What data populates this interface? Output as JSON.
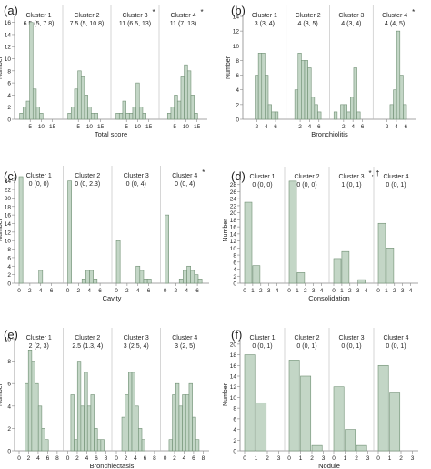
{
  "colors": {
    "bar_fill": "#c3d6c6",
    "bar_stroke": "#6f8f73",
    "axis": "#888888",
    "divider": "#bbbbbb",
    "text": "#222222"
  },
  "chart_data": [
    {
      "panel": "(a)",
      "type": "bar",
      "xlabel": "Total score",
      "ylabel": "Number",
      "ylim": [
        0,
        17
      ],
      "yticks": [
        0,
        2,
        4,
        6,
        8,
        10,
        12,
        14,
        16
      ],
      "xlim": [
        0,
        18
      ],
      "xticks": [
        5,
        10,
        15
      ],
      "bin_width": 1.5,
      "grid": false,
      "clusters": [
        {
          "name": "Cluster 1",
          "stat": "6.5 (5, 7.8)",
          "marker": "",
          "x": [
            1,
            2.5,
            4,
            5.5,
            7,
            8.5,
            10
          ],
          "values": [
            1,
            2,
            3,
            16,
            5,
            2,
            1
          ]
        },
        {
          "name": "Cluster 2",
          "stat": "7.5 (5, 10.8)",
          "marker": "",
          "x": [
            1,
            2.5,
            4,
            5.5,
            7,
            8.5,
            10,
            11.5,
            13
          ],
          "values": [
            1,
            2,
            5,
            8,
            7,
            4,
            2,
            1,
            1
          ]
        },
        {
          "name": "Cluster 3",
          "stat": "11 (6.5, 13)",
          "marker": "*",
          "x": [
            1,
            2.5,
            4,
            5.5,
            7,
            8.5,
            10,
            11.5,
            13
          ],
          "values": [
            1,
            1,
            3,
            1,
            1,
            2,
            6,
            2,
            1
          ]
        },
        {
          "name": "Cluster 4",
          "stat": "11 (7, 13)",
          "marker": "*",
          "x": [
            2.5,
            4,
            5.5,
            7,
            8.5,
            10,
            11.5,
            13,
            14.5
          ],
          "values": [
            1,
            2,
            4,
            3,
            7,
            9,
            8,
            4,
            1
          ]
        }
      ]
    },
    {
      "panel": "(b)",
      "type": "bar",
      "xlabel": "Bronchiolitis",
      "ylabel": "Number",
      "ylim": [
        0,
        14
      ],
      "yticks": [
        0,
        2,
        4,
        6,
        8,
        10,
        12,
        14
      ],
      "xlim": [
        0,
        7.5
      ],
      "xticks": [
        2,
        4,
        6
      ],
      "bin_width": 0.7,
      "grid": false,
      "clusters": [
        {
          "name": "Cluster 1",
          "stat": "3 (3, 4)",
          "marker": "",
          "x": [
            2,
            2.7,
            3.4,
            4.1,
            4.8,
            5.5,
            6.2
          ],
          "values": [
            6,
            9,
            9,
            6,
            2,
            1,
            1
          ]
        },
        {
          "name": "Cluster 2",
          "stat": "4 (3, 5)",
          "marker": "",
          "x": [
            1.2,
            1.9,
            2.6,
            3.3,
            4,
            4.7,
            5.4,
            6.1
          ],
          "values": [
            4,
            9,
            8,
            8,
            7,
            3,
            2,
            1
          ]
        },
        {
          "name": "Cluster 3",
          "stat": "4 (3, 4)",
          "marker": "",
          "x": [
            0.3,
            1.7,
            2.4,
            3.1,
            3.8,
            4.5,
            5.2
          ],
          "values": [
            1,
            2,
            2,
            1,
            3,
            7,
            1
          ]
        },
        {
          "name": "Cluster 4",
          "stat": "4 (4, 5)",
          "marker": "*",
          "x": [
            3,
            3.7,
            4.4,
            5.1,
            5.8
          ],
          "values": [
            2,
            4,
            12,
            6,
            2
          ]
        }
      ]
    },
    {
      "panel": "(c)",
      "type": "bar",
      "xlabel": "Cavity",
      "ylabel": "Number",
      "ylim": [
        0,
        25
      ],
      "yticks": [
        0,
        2,
        4,
        6,
        8,
        10,
        12,
        14,
        16,
        18,
        20,
        22,
        24
      ],
      "xlim": [
        0,
        7.5
      ],
      "xticks": [
        0,
        2,
        4,
        6
      ],
      "bin_width": 0.7,
      "grid": false,
      "clusters": [
        {
          "name": "Cluster 1",
          "stat": "0 (0, 0)",
          "marker": "",
          "x": [
            0.35,
            4.0
          ],
          "values": [
            25,
            3
          ]
        },
        {
          "name": "Cluster 2",
          "stat": "0 (0, 2.3)",
          "marker": "",
          "x": [
            0.35,
            3.0,
            3.7,
            4.4,
            5.1
          ],
          "values": [
            24,
            1,
            3,
            3,
            1
          ]
        },
        {
          "name": "Cluster 3",
          "stat": "0 (0, 4)",
          "marker": "",
          "x": [
            0.35,
            4.0,
            4.7,
            5.4,
            6.1
          ],
          "values": [
            10,
            4,
            3,
            1,
            1
          ]
        },
        {
          "name": "Cluster 4",
          "stat": "0 (0, 4)",
          "marker": "*",
          "x": [
            0.35,
            3.0,
            3.7,
            4.4,
            5.1,
            5.8,
            6.5
          ],
          "values": [
            16,
            1,
            3,
            4,
            3,
            2,
            1
          ]
        }
      ]
    },
    {
      "panel": "(d)",
      "type": "bar",
      "xlabel": "Consolidation",
      "ylabel": "Number",
      "ylim": [
        0,
        30
      ],
      "yticks": [
        0,
        2,
        4,
        6,
        8,
        10,
        12,
        14,
        16,
        18,
        20,
        22,
        24,
        26,
        28
      ],
      "xlim": [
        0,
        4.5
      ],
      "xticks": [
        0,
        1,
        2,
        3,
        4
      ],
      "bin_width": 0.9,
      "grid": false,
      "clusters": [
        {
          "name": "Cluster 1",
          "stat": "0 (0, 0)",
          "marker": "",
          "x": [
            0.45,
            1.45
          ],
          "values": [
            23,
            5
          ]
        },
        {
          "name": "Cluster 2",
          "stat": "0 (0, 0)",
          "marker": "",
          "x": [
            0.45,
            1.45
          ],
          "values": [
            29,
            3
          ]
        },
        {
          "name": "Cluster 3",
          "stat": "1 (0, 1)",
          "marker": "*, †",
          "x": [
            0.45,
            1.45,
            3.45
          ],
          "values": [
            7,
            9,
            1
          ]
        },
        {
          "name": "Cluster 4",
          "stat": "0 (0, 1)",
          "marker": "",
          "x": [
            0.45,
            1.45
          ],
          "values": [
            17,
            10
          ]
        }
      ]
    },
    {
      "panel": "(e)",
      "type": "bar",
      "xlabel": "Bronchiectasis",
      "ylabel": "Number",
      "ylim": [
        0,
        10
      ],
      "yticks": [
        0,
        2,
        4,
        6,
        8,
        10
      ],
      "xlim": [
        0,
        8.5
      ],
      "xticks": [
        0,
        2,
        4,
        6,
        8
      ],
      "bin_width": 0.7,
      "grid": false,
      "clusters": [
        {
          "name": "Cluster 1",
          "stat": "2 (2, 3)",
          "marker": "",
          "x": [
            1.6,
            2.3,
            3.0,
            3.7,
            4.4,
            5.1,
            5.8
          ],
          "values": [
            6,
            9,
            8,
            6,
            4,
            2,
            1
          ]
        },
        {
          "name": "Cluster 2",
          "stat": "2.5 (1.3, 4)",
          "marker": "",
          "x": [
            1.0,
            1.7,
            2.4,
            3.1,
            3.8,
            4.5,
            5.2,
            5.9,
            6.6,
            7.3
          ],
          "values": [
            5,
            1,
            8,
            4,
            7,
            4,
            5,
            2,
            1,
            1
          ]
        },
        {
          "name": "Cluster 3",
          "stat": "3 (2.5, 4)",
          "marker": "",
          "x": [
            1.5,
            2.2,
            2.9,
            3.6,
            4.3,
            5.0,
            5.7
          ],
          "values": [
            3,
            5,
            7,
            7,
            4,
            2,
            1
          ]
        },
        {
          "name": "Cluster 4",
          "stat": "3 (2, 5)",
          "marker": "",
          "x": [
            1.2,
            1.9,
            2.6,
            3.3,
            4.0,
            4.7,
            5.4,
            6.1,
            6.8
          ],
          "values": [
            1,
            5,
            6,
            4,
            5,
            5,
            6,
            3,
            1
          ]
        }
      ]
    },
    {
      "panel": "(f)",
      "type": "bar",
      "xlabel": "Nodule",
      "ylabel": "Number",
      "ylim": [
        0,
        21
      ],
      "yticks": [
        0,
        2,
        4,
        6,
        8,
        10,
        12,
        14,
        16,
        18,
        20
      ],
      "xlim": [
        0,
        3.2
      ],
      "xticks": [
        0,
        1,
        2,
        3
      ],
      "bin_width": 0.9,
      "grid": false,
      "clusters": [
        {
          "name": "Cluster 1",
          "stat": "0 (0, 1)",
          "marker": "",
          "x": [
            0.45,
            1.45
          ],
          "values": [
            18,
            9
          ]
        },
        {
          "name": "Cluster 2",
          "stat": "0 (0, 1)",
          "marker": "",
          "x": [
            0.45,
            1.45,
            2.45
          ],
          "values": [
            17,
            14,
            1
          ]
        },
        {
          "name": "Cluster 3",
          "stat": "0 (0, 1)",
          "marker": "",
          "x": [
            0.45,
            1.45,
            2.45
          ],
          "values": [
            12,
            4,
            1
          ]
        },
        {
          "name": "Cluster 4",
          "stat": "0 (0, 1)",
          "marker": "",
          "x": [
            0.45,
            1.45
          ],
          "values": [
            16,
            11
          ]
        }
      ]
    }
  ]
}
